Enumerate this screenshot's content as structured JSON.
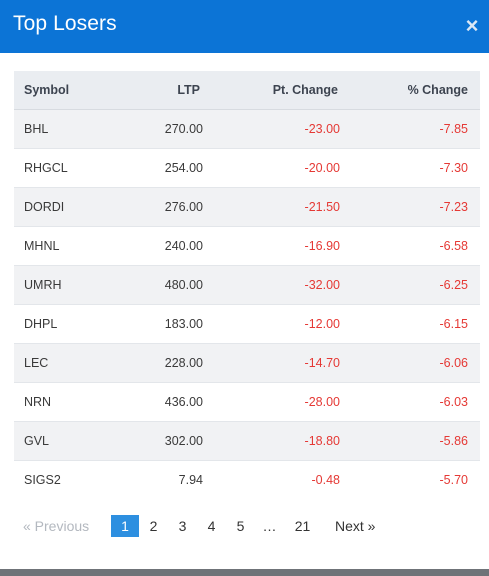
{
  "modal": {
    "title": "Top Losers",
    "close_glyph": "×"
  },
  "table": {
    "headers": {
      "symbol": "Symbol",
      "ltp": "LTP",
      "pt_change": "Pt. Change",
      "pct_change": "% Change"
    },
    "rows": [
      {
        "symbol": "BHL",
        "ltp": "270.00",
        "pt_change": "-23.00",
        "pct_change": "-7.85"
      },
      {
        "symbol": "RHGCL",
        "ltp": "254.00",
        "pt_change": "-20.00",
        "pct_change": "-7.30"
      },
      {
        "symbol": "DORDI",
        "ltp": "276.00",
        "pt_change": "-21.50",
        "pct_change": "-7.23"
      },
      {
        "symbol": "MHNL",
        "ltp": "240.00",
        "pt_change": "-16.90",
        "pct_change": "-6.58"
      },
      {
        "symbol": "UMRH",
        "ltp": "480.00",
        "pt_change": "-32.00",
        "pct_change": "-6.25"
      },
      {
        "symbol": "DHPL",
        "ltp": "183.00",
        "pt_change": "-12.00",
        "pct_change": "-6.15"
      },
      {
        "symbol": "LEC",
        "ltp": "228.00",
        "pt_change": "-14.70",
        "pct_change": "-6.06"
      },
      {
        "symbol": "NRN",
        "ltp": "436.00",
        "pt_change": "-28.00",
        "pct_change": "-6.03"
      },
      {
        "symbol": "GVL",
        "ltp": "302.00",
        "pt_change": "-18.80",
        "pct_change": "-5.86"
      },
      {
        "symbol": "SIGS2",
        "ltp": "7.94",
        "pt_change": "-0.48",
        "pct_change": "-5.70"
      }
    ]
  },
  "pagination": {
    "previous_label": "«  Previous",
    "pages": [
      "1",
      "2",
      "3",
      "4",
      "5"
    ],
    "ellipsis": "…",
    "last_page": "21",
    "next_label": "Next  »",
    "current_page": "1"
  },
  "colors": {
    "header_bg": "#0c74d6",
    "negative": "#e53935",
    "active_page": "#2d8fe0"
  }
}
